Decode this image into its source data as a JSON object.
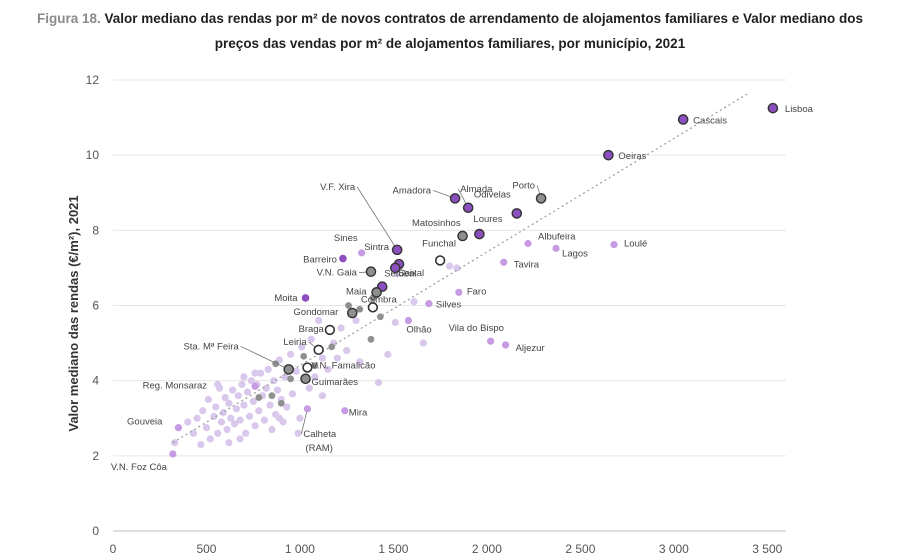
{
  "figure": {
    "label": "Figura 18.",
    "title_line1": "Valor mediano das rendas por m² de novos contratos de arrendamento de alojamentos familiares e Valor mediano dos",
    "title_line2": "preços das vendas por m² de alojamentos familiares, por município, 2021"
  },
  "colors": {
    "bg_point": "#d9c8ec",
    "highlight_purple": "#8c4fbf",
    "highlight_grey": "#8f8f8f",
    "trend": "#9a9a9a",
    "outline": "#333333"
  },
  "chart_data": {
    "type": "scatter",
    "title": "Valor mediano das rendas por m² de novos contratos de arrendamento de alojamentos familiares e Valor mediano dos preços das vendas por m² de alojamentos familiares, por município, 2021",
    "xlabel": "",
    "ylabel": "Valor mediano das rendas (€/m²), 2021",
    "xlim": [
      0,
      3600
    ],
    "ylim": [
      0,
      12
    ],
    "x_ticks": [
      "0",
      "500",
      "1 000",
      "1 500",
      "2 000",
      "2 500",
      "3 000",
      "3 500"
    ],
    "x_tick_values": [
      0,
      500,
      1000,
      1500,
      2000,
      2500,
      3000,
      3500
    ],
    "y_ticks": [
      "0",
      "2",
      "4",
      "6",
      "8",
      "10",
      "12"
    ],
    "y_tick_values": [
      0,
      2,
      4,
      6,
      8,
      10,
      12
    ],
    "trendline": {
      "x": [
        320,
        3400
      ],
      "y": [
        2.35,
        11.65
      ]
    },
    "labeled_points": [
      {
        "name": "Lisboa",
        "x": 3530,
        "y": 11.25,
        "style": "purple-outline"
      },
      {
        "name": "Cascais",
        "x": 3050,
        "y": 10.95,
        "style": "purple-outline"
      },
      {
        "name": "Oeiras",
        "x": 2650,
        "y": 10.0,
        "style": "purple-outline"
      },
      {
        "name": "Porto",
        "x": 2290,
        "y": 8.85,
        "style": "grey-outline"
      },
      {
        "name": "Almada",
        "x": 1900,
        "y": 8.6,
        "style": "purple-outline"
      },
      {
        "name": "Amadora",
        "x": 1830,
        "y": 8.85,
        "style": "purple-outline"
      },
      {
        "name": "Odivelas",
        "x": 2160,
        "y": 8.45,
        "style": "purple-outline"
      },
      {
        "name": "Matosinhos",
        "x": 1870,
        "y": 7.85,
        "style": "grey-outline"
      },
      {
        "name": "Loures",
        "x": 1960,
        "y": 7.9,
        "style": "purple-outline"
      },
      {
        "name": "Albufeira",
        "x": 2220,
        "y": 7.65,
        "style": "light-purple"
      },
      {
        "name": "Loulé",
        "x": 2680,
        "y": 7.62,
        "style": "light-purple"
      },
      {
        "name": "Lagos",
        "x": 2370,
        "y": 7.52,
        "style": "light-purple"
      },
      {
        "name": "Tavira",
        "x": 2090,
        "y": 7.15,
        "style": "light-purple"
      },
      {
        "name": "V.F. Xira",
        "x": 1520,
        "y": 7.48,
        "style": "purple-outline"
      },
      {
        "name": "Sintra",
        "x": 1530,
        "y": 7.1,
        "style": "purple-outline"
      },
      {
        "name": "Funchal",
        "x": 1750,
        "y": 7.2,
        "style": "white-outline"
      },
      {
        "name": "Seixal",
        "x": 1510,
        "y": 7.0,
        "style": "purple-outline"
      },
      {
        "name": "Sines",
        "x": 1330,
        "y": 7.4,
        "style": "light-purple"
      },
      {
        "name": "Barreiro",
        "x": 1230,
        "y": 7.25,
        "style": "purple"
      },
      {
        "name": "V.N. Gaia",
        "x": 1380,
        "y": 6.9,
        "style": "grey-outline"
      },
      {
        "name": "Setúbal",
        "x": 1440,
        "y": 6.5,
        "style": "purple-outline"
      },
      {
        "name": "Maia",
        "x": 1410,
        "y": 6.35,
        "style": "grey-outline"
      },
      {
        "name": "Faro",
        "x": 1850,
        "y": 6.35,
        "style": "light-purple"
      },
      {
        "name": "Moita",
        "x": 1030,
        "y": 6.2,
        "style": "purple"
      },
      {
        "name": "Coimbra",
        "x": 1390,
        "y": 5.95,
        "style": "white-outline"
      },
      {
        "name": "Silves",
        "x": 1690,
        "y": 6.05,
        "style": "light-purple"
      },
      {
        "name": "Gondomar",
        "x": 1280,
        "y": 5.8,
        "style": "grey-outline"
      },
      {
        "name": "Olhão",
        "x": 1580,
        "y": 5.6,
        "style": "light-purple"
      },
      {
        "name": "Braga",
        "x": 1160,
        "y": 5.35,
        "style": "white-outline"
      },
      {
        "name": "Vila do Bispo",
        "x": 2020,
        "y": 5.05,
        "style": "light-purple"
      },
      {
        "name": "Aljezur",
        "x": 2100,
        "y": 4.95,
        "style": "light-purple"
      },
      {
        "name": "Leiria",
        "x": 1100,
        "y": 4.82,
        "style": "white-outline"
      },
      {
        "name": "Sta. Mª Feira",
        "x": 940,
        "y": 4.3,
        "style": "grey-outline"
      },
      {
        "name": "V.N. Famalicão",
        "x": 1040,
        "y": 4.35,
        "style": "white-outline"
      },
      {
        "name": "Reg. Monsaraz",
        "x": 760,
        "y": 3.85,
        "style": "light-purple"
      },
      {
        "name": "Guimarães",
        "x": 1030,
        "y": 4.05,
        "style": "grey-outline"
      },
      {
        "name": "Mira",
        "x": 1240,
        "y": 3.2,
        "style": "light-purple"
      },
      {
        "name": "Calheta (RAM)",
        "x": 1040,
        "y": 3.25,
        "style": "light-purple"
      },
      {
        "name": "Gouveia",
        "x": 350,
        "y": 2.75,
        "style": "light-purple"
      },
      {
        "name": "V.N. Foz Côa",
        "x": 320,
        "y": 2.05,
        "style": "light-purple"
      }
    ],
    "grey_points": [
      {
        "x": 870,
        "y": 4.45
      },
      {
        "x": 950,
        "y": 4.05
      },
      {
        "x": 1020,
        "y": 4.65
      },
      {
        "x": 1080,
        "y": 4.4
      },
      {
        "x": 850,
        "y": 3.6
      },
      {
        "x": 900,
        "y": 3.4
      },
      {
        "x": 780,
        "y": 3.55
      },
      {
        "x": 1380,
        "y": 5.1
      },
      {
        "x": 1430,
        "y": 5.7
      },
      {
        "x": 1320,
        "y": 5.9
      },
      {
        "x": 1390,
        "y": 6.2
      },
      {
        "x": 1170,
        "y": 4.9
      },
      {
        "x": 1260,
        "y": 6.0
      }
    ],
    "background_points": [
      {
        "x": 330,
        "y": 2.35
      },
      {
        "x": 400,
        "y": 2.9
      },
      {
        "x": 430,
        "y": 2.6
      },
      {
        "x": 450,
        "y": 3.0
      },
      {
        "x": 470,
        "y": 2.3
      },
      {
        "x": 480,
        "y": 3.2
      },
      {
        "x": 500,
        "y": 2.75
      },
      {
        "x": 510,
        "y": 3.5
      },
      {
        "x": 520,
        "y": 2.45
      },
      {
        "x": 540,
        "y": 3.05
      },
      {
        "x": 550,
        "y": 3.3
      },
      {
        "x": 560,
        "y": 2.6
      },
      {
        "x": 570,
        "y": 3.8
      },
      {
        "x": 580,
        "y": 2.9
      },
      {
        "x": 590,
        "y": 3.15
      },
      {
        "x": 600,
        "y": 3.55
      },
      {
        "x": 610,
        "y": 2.7
      },
      {
        "x": 620,
        "y": 3.4
      },
      {
        "x": 630,
        "y": 3.0
      },
      {
        "x": 640,
        "y": 3.75
      },
      {
        "x": 650,
        "y": 2.85
      },
      {
        "x": 660,
        "y": 3.25
      },
      {
        "x": 670,
        "y": 3.6
      },
      {
        "x": 680,
        "y": 2.95
      },
      {
        "x": 690,
        "y": 3.9
      },
      {
        "x": 700,
        "y": 3.35
      },
      {
        "x": 710,
        "y": 2.6
      },
      {
        "x": 720,
        "y": 3.7
      },
      {
        "x": 730,
        "y": 3.05
      },
      {
        "x": 740,
        "y": 4.0
      },
      {
        "x": 750,
        "y": 3.45
      },
      {
        "x": 760,
        "y": 2.8
      },
      {
        "x": 770,
        "y": 3.9
      },
      {
        "x": 780,
        "y": 3.2
      },
      {
        "x": 790,
        "y": 4.2
      },
      {
        "x": 800,
        "y": 3.6
      },
      {
        "x": 810,
        "y": 2.95
      },
      {
        "x": 820,
        "y": 3.8
      },
      {
        "x": 830,
        "y": 4.3
      },
      {
        "x": 840,
        "y": 3.35
      },
      {
        "x": 850,
        "y": 2.7
      },
      {
        "x": 860,
        "y": 4.0
      },
      {
        "x": 870,
        "y": 3.1
      },
      {
        "x": 880,
        "y": 3.75
      },
      {
        "x": 890,
        "y": 4.55
      },
      {
        "x": 900,
        "y": 3.5
      },
      {
        "x": 910,
        "y": 2.9
      },
      {
        "x": 920,
        "y": 4.1
      },
      {
        "x": 930,
        "y": 3.3
      },
      {
        "x": 950,
        "y": 4.7
      },
      {
        "x": 960,
        "y": 3.65
      },
      {
        "x": 980,
        "y": 4.25
      },
      {
        "x": 1000,
        "y": 3.0
      },
      {
        "x": 1010,
        "y": 4.9
      },
      {
        "x": 1050,
        "y": 3.8
      },
      {
        "x": 1060,
        "y": 5.1
      },
      {
        "x": 1080,
        "y": 4.1
      },
      {
        "x": 1100,
        "y": 5.6
      },
      {
        "x": 1120,
        "y": 3.6
      },
      {
        "x": 1150,
        "y": 4.3
      },
      {
        "x": 1180,
        "y": 5.0
      },
      {
        "x": 1200,
        "y": 4.6
      },
      {
        "x": 1220,
        "y": 5.4
      },
      {
        "x": 1250,
        "y": 4.8
      },
      {
        "x": 1300,
        "y": 5.6
      },
      {
        "x": 1320,
        "y": 4.5
      },
      {
        "x": 1420,
        "y": 3.95
      },
      {
        "x": 1470,
        "y": 4.7
      },
      {
        "x": 1510,
        "y": 5.55
      },
      {
        "x": 1660,
        "y": 5.0
      },
      {
        "x": 1610,
        "y": 6.1
      },
      {
        "x": 1800,
        "y": 7.05
      },
      {
        "x": 1840,
        "y": 7.0
      },
      {
        "x": 1520,
        "y": 6.85
      },
      {
        "x": 680,
        "y": 2.45
      },
      {
        "x": 560,
        "y": 3.9
      },
      {
        "x": 620,
        "y": 2.35
      },
      {
        "x": 760,
        "y": 4.2
      },
      {
        "x": 990,
        "y": 2.6
      },
      {
        "x": 890,
        "y": 3.0
      },
      {
        "x": 700,
        "y": 4.1
      },
      {
        "x": 1120,
        "y": 4.6
      }
    ]
  }
}
